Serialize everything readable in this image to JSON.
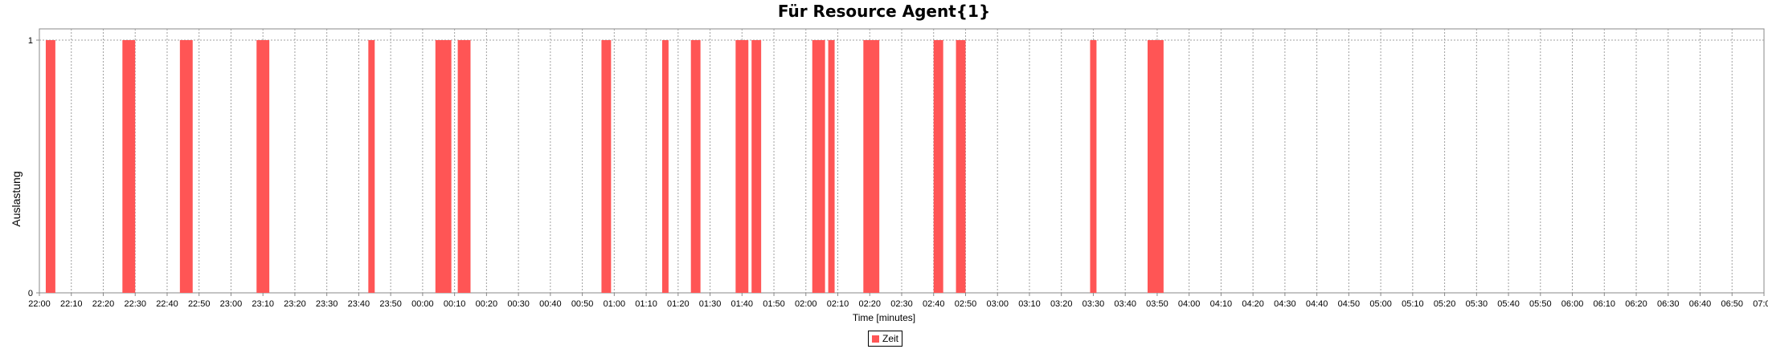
{
  "chart_data": {
    "type": "bar",
    "title": "Für Resource Agent{1}",
    "xlabel": "Time [minutes]",
    "ylabel": "Auslastung",
    "x_range": [
      "22:00",
      "07:00"
    ],
    "ylim": [
      0,
      1
    ],
    "y_ticks": [
      "0",
      "1"
    ],
    "x_ticks": [
      "22:00",
      "22:10",
      "22:20",
      "22:30",
      "22:40",
      "22:50",
      "23:00",
      "23:10",
      "23:20",
      "23:30",
      "23:40",
      "23:50",
      "00:00",
      "00:10",
      "00:20",
      "00:30",
      "00:40",
      "00:50",
      "01:00",
      "01:10",
      "01:20",
      "01:30",
      "01:40",
      "01:50",
      "02:00",
      "02:10",
      "02:20",
      "02:30",
      "02:40",
      "02:50",
      "03:00",
      "03:10",
      "03:20",
      "03:30",
      "03:40",
      "03:50",
      "04:00",
      "04:10",
      "04:20",
      "04:30",
      "04:40",
      "04:50",
      "05:00",
      "05:10",
      "05:20",
      "05:30",
      "05:40",
      "05:50",
      "06:00",
      "06:10",
      "06:20",
      "06:30",
      "06:40",
      "06:50",
      "07:00"
    ],
    "grid": true,
    "legend_position": "bottom-center",
    "series": [
      {
        "name": "Zeit",
        "color": "#ff5555",
        "values": [
          {
            "start": "22:02",
            "end": "22:05",
            "value": 1
          },
          {
            "start": "22:26",
            "end": "22:30",
            "value": 1
          },
          {
            "start": "22:44",
            "end": "22:48",
            "value": 1
          },
          {
            "start": "23:08",
            "end": "23:12",
            "value": 1
          },
          {
            "start": "23:43",
            "end": "23:45",
            "value": 1
          },
          {
            "start": "00:04",
            "end": "00:09",
            "value": 1
          },
          {
            "start": "00:11",
            "end": "00:15",
            "value": 1
          },
          {
            "start": "00:56",
            "end": "00:59",
            "value": 1
          },
          {
            "start": "01:15",
            "end": "01:17",
            "value": 1
          },
          {
            "start": "01:24",
            "end": "01:27",
            "value": 1
          },
          {
            "start": "01:38",
            "end": "01:42",
            "value": 1
          },
          {
            "start": "01:43",
            "end": "01:46",
            "value": 1
          },
          {
            "start": "02:02",
            "end": "02:06",
            "value": 1
          },
          {
            "start": "02:07",
            "end": "02:09",
            "value": 1
          },
          {
            "start": "02:18",
            "end": "02:23",
            "value": 1
          },
          {
            "start": "02:40",
            "end": "02:43",
            "value": 1
          },
          {
            "start": "02:47",
            "end": "02:50",
            "value": 1
          },
          {
            "start": "03:29",
            "end": "03:31",
            "value": 1
          },
          {
            "start": "03:47",
            "end": "03:52",
            "value": 1
          }
        ]
      }
    ]
  }
}
